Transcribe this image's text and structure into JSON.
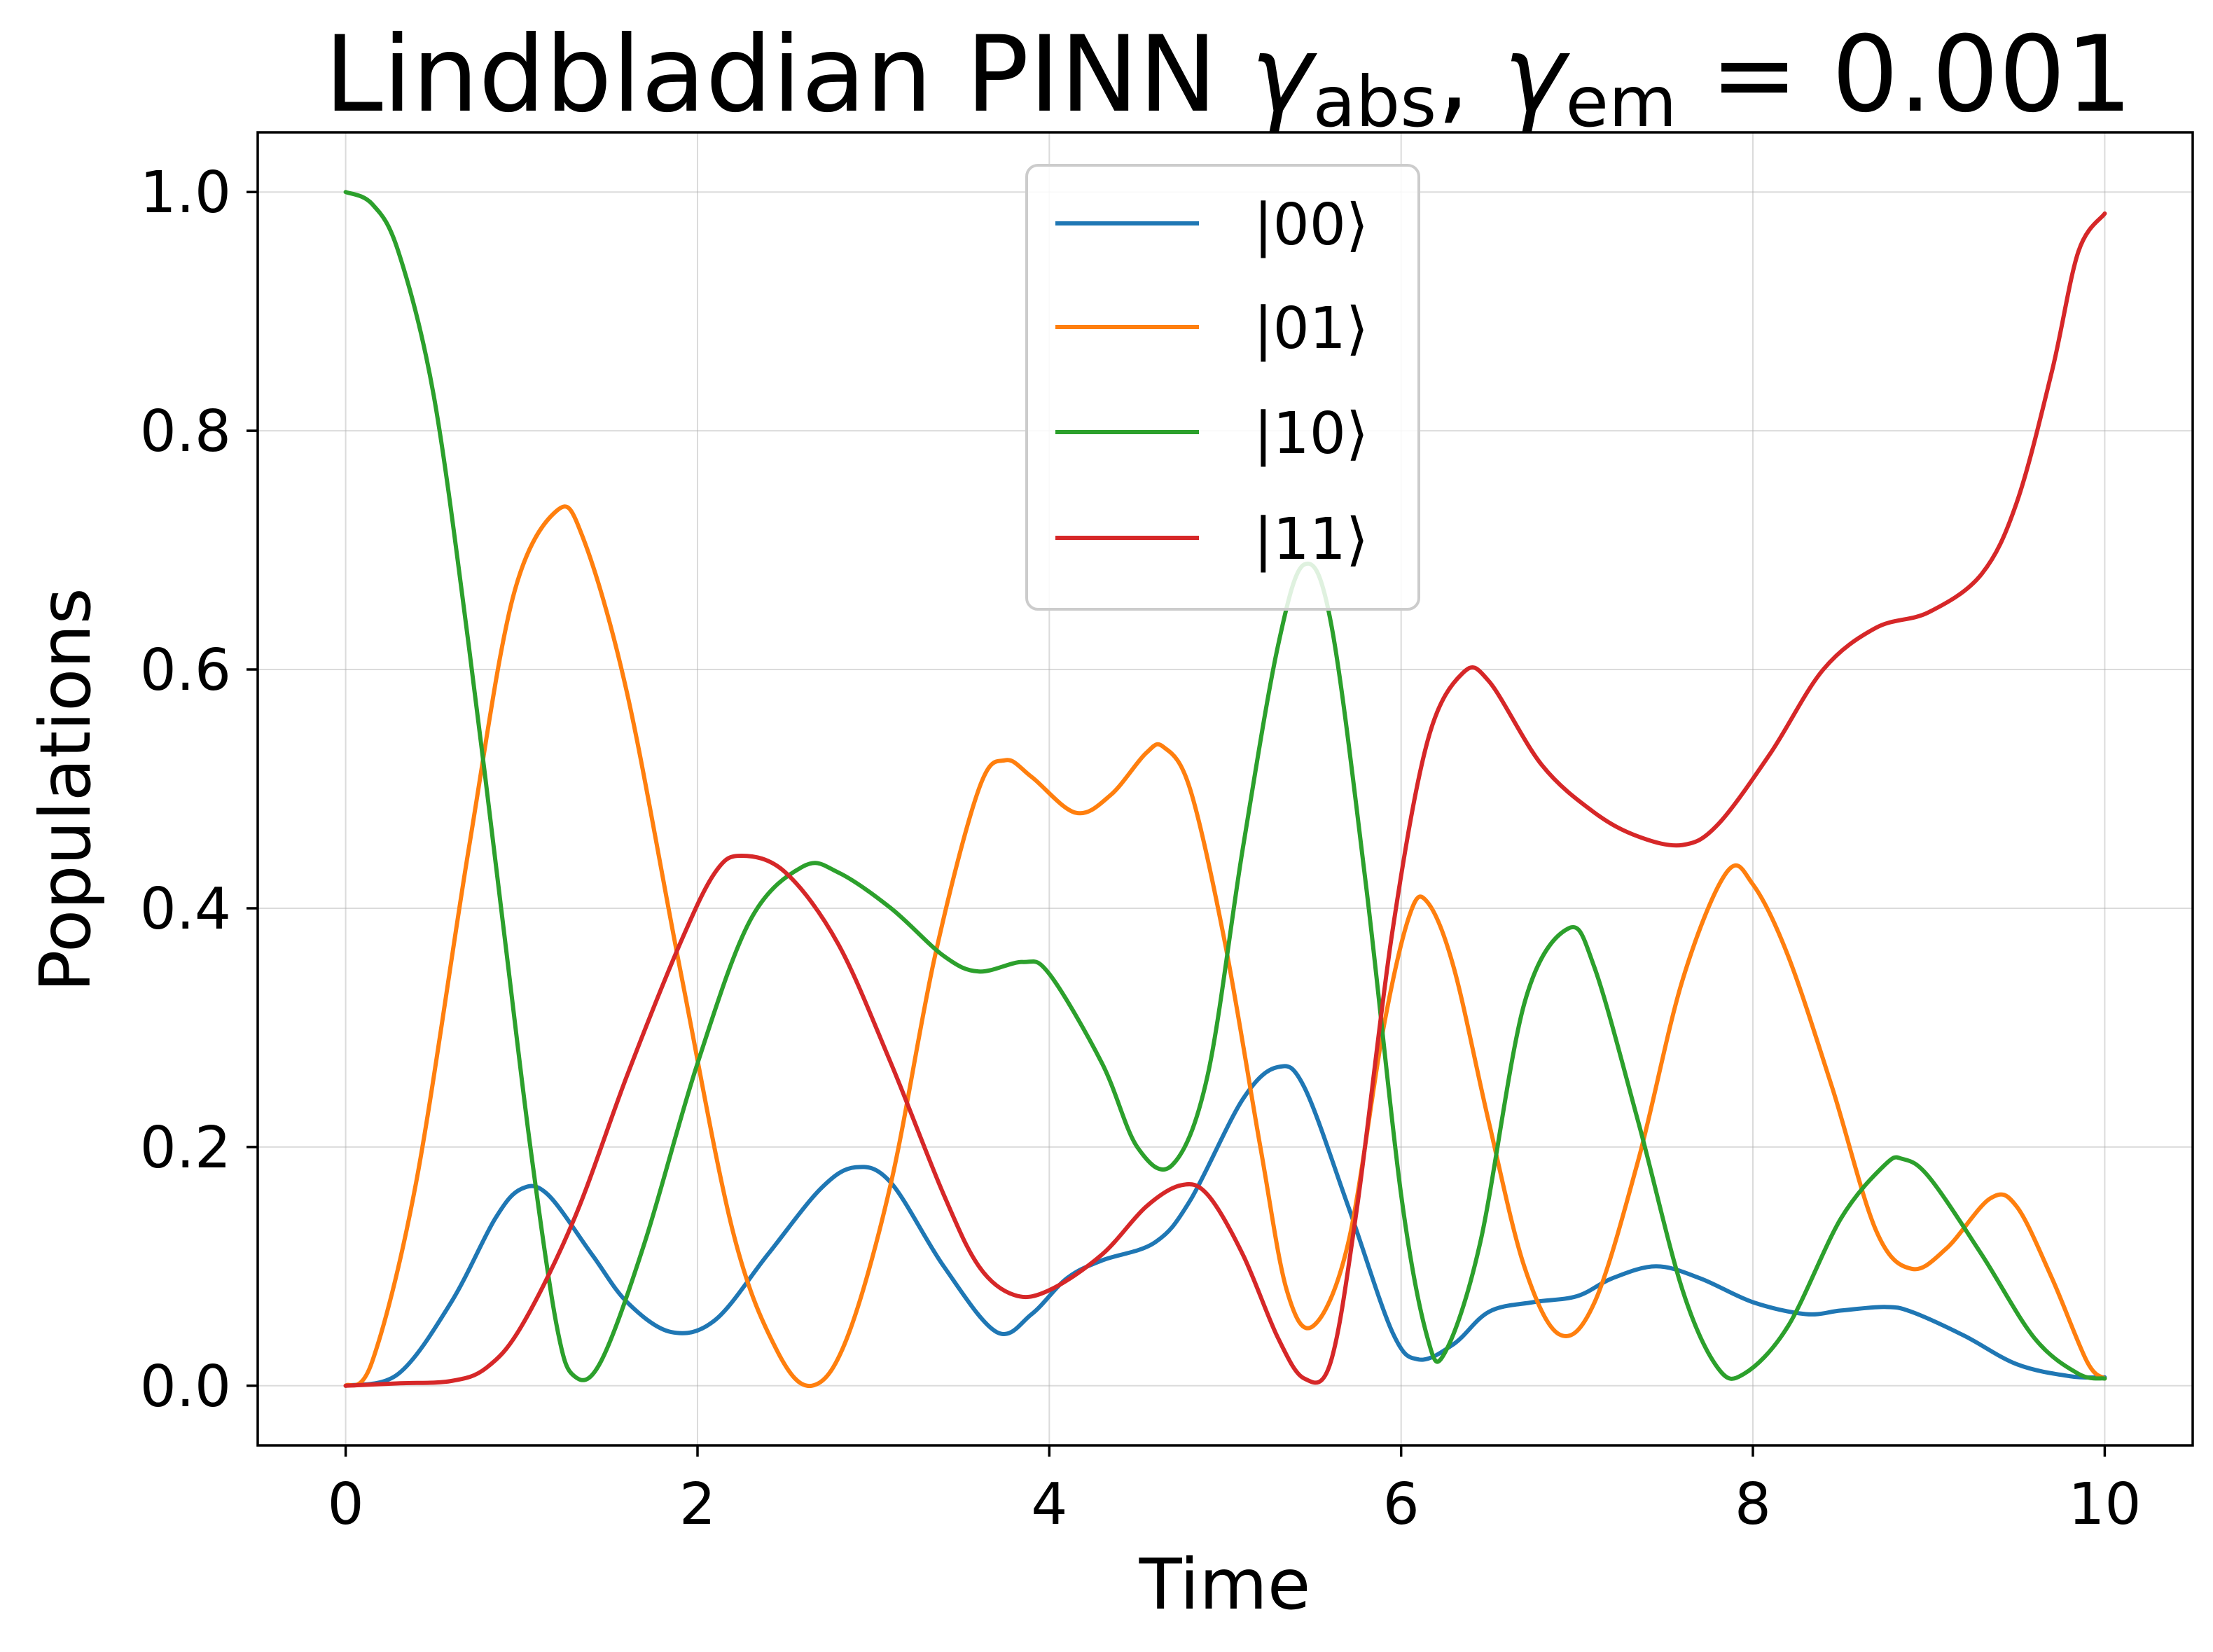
{
  "chart_data": {
    "type": "line",
    "title": "Lindbladian PINN γabs, γem = 0.001",
    "title_parts": {
      "prefix": "Lindbladian PINN ",
      "gamma": "γ",
      "sub_abs": "abs",
      "sep": ", ",
      "sub_em": "em",
      "suffix": " = 0.001"
    },
    "xlabel": "Time",
    "ylabel": "Populations",
    "xlim": [
      -0.5,
      10.5
    ],
    "ylim": [
      -0.05,
      1.05
    ],
    "xticks": [
      0,
      2,
      4,
      6,
      8,
      10
    ],
    "xtick_labels": [
      "0",
      "2",
      "4",
      "6",
      "8",
      "10"
    ],
    "yticks": [
      0.0,
      0.2,
      0.4,
      0.6,
      0.8,
      1.0
    ],
    "ytick_labels": [
      "0.0",
      "0.2",
      "0.4",
      "0.6",
      "0.8",
      "1.0"
    ],
    "grid": true,
    "legend_position": "top-center",
    "series": [
      {
        "name": "|00⟩",
        "color": "#1f77b4",
        "points": [
          [
            0,
            0
          ],
          [
            0.3,
            0.01
          ],
          [
            0.6,
            0.07
          ],
          [
            0.85,
            0.14
          ],
          [
            1.0,
            0.165
          ],
          [
            1.15,
            0.16
          ],
          [
            1.4,
            0.11
          ],
          [
            1.6,
            0.07
          ],
          [
            1.85,
            0.045
          ],
          [
            2.1,
            0.055
          ],
          [
            2.4,
            0.11
          ],
          [
            2.7,
            0.165
          ],
          [
            2.9,
            0.183
          ],
          [
            3.1,
            0.17
          ],
          [
            3.4,
            0.1
          ],
          [
            3.7,
            0.045
          ],
          [
            3.9,
            0.06
          ],
          [
            4.1,
            0.09
          ],
          [
            4.3,
            0.105
          ],
          [
            4.6,
            0.12
          ],
          [
            4.8,
            0.155
          ],
          [
            5.1,
            0.24
          ],
          [
            5.3,
            0.267
          ],
          [
            5.45,
            0.25
          ],
          [
            5.7,
            0.15
          ],
          [
            5.95,
            0.045
          ],
          [
            6.1,
            0.022
          ],
          [
            6.3,
            0.035
          ],
          [
            6.5,
            0.062
          ],
          [
            6.75,
            0.07
          ],
          [
            7.0,
            0.075
          ],
          [
            7.2,
            0.09
          ],
          [
            7.45,
            0.1
          ],
          [
            7.7,
            0.09
          ],
          [
            8.0,
            0.07
          ],
          [
            8.3,
            0.06
          ],
          [
            8.5,
            0.063
          ],
          [
            8.75,
            0.066
          ],
          [
            8.9,
            0.062
          ],
          [
            9.2,
            0.042
          ],
          [
            9.5,
            0.018
          ],
          [
            9.8,
            0.008
          ],
          [
            10,
            0.007
          ]
        ]
      },
      {
        "name": "|01⟩",
        "color": "#ff7f0e",
        "points": [
          [
            0,
            0
          ],
          [
            0.15,
            0.02
          ],
          [
            0.4,
            0.17
          ],
          [
            0.7,
            0.45
          ],
          [
            0.95,
            0.66
          ],
          [
            1.2,
            0.733
          ],
          [
            1.35,
            0.71
          ],
          [
            1.6,
            0.58
          ],
          [
            1.9,
            0.35
          ],
          [
            2.2,
            0.13
          ],
          [
            2.45,
            0.03
          ],
          [
            2.65,
            0.0
          ],
          [
            2.85,
            0.04
          ],
          [
            3.1,
            0.17
          ],
          [
            3.35,
            0.36
          ],
          [
            3.6,
            0.5
          ],
          [
            3.75,
            0.524
          ],
          [
            3.9,
            0.51
          ],
          [
            4.15,
            0.48
          ],
          [
            4.35,
            0.495
          ],
          [
            4.55,
            0.53
          ],
          [
            4.65,
            0.535
          ],
          [
            4.8,
            0.5
          ],
          [
            5.0,
            0.37
          ],
          [
            5.2,
            0.2
          ],
          [
            5.35,
            0.08
          ],
          [
            5.5,
            0.05
          ],
          [
            5.7,
            0.12
          ],
          [
            5.9,
            0.3
          ],
          [
            6.05,
            0.395
          ],
          [
            6.15,
            0.405
          ],
          [
            6.3,
            0.35
          ],
          [
            6.5,
            0.22
          ],
          [
            6.7,
            0.1
          ],
          [
            6.9,
            0.043
          ],
          [
            7.1,
            0.07
          ],
          [
            7.35,
            0.19
          ],
          [
            7.6,
            0.34
          ],
          [
            7.85,
            0.43
          ],
          [
            8.0,
            0.42
          ],
          [
            8.2,
            0.36
          ],
          [
            8.45,
            0.25
          ],
          [
            8.7,
            0.13
          ],
          [
            8.9,
            0.098
          ],
          [
            9.1,
            0.115
          ],
          [
            9.35,
            0.157
          ],
          [
            9.5,
            0.15
          ],
          [
            9.7,
            0.09
          ],
          [
            9.9,
            0.02
          ],
          [
            10,
            0.006
          ]
        ]
      },
      {
        "name": "|10⟩",
        "color": "#2ca02c",
        "points": [
          [
            0,
            1.0
          ],
          [
            0.15,
            0.99
          ],
          [
            0.3,
            0.95
          ],
          [
            0.5,
            0.83
          ],
          [
            0.7,
            0.62
          ],
          [
            0.9,
            0.38
          ],
          [
            1.05,
            0.2
          ],
          [
            1.2,
            0.05
          ],
          [
            1.3,
            0.008
          ],
          [
            1.45,
            0.02
          ],
          [
            1.7,
            0.12
          ],
          [
            2.0,
            0.27
          ],
          [
            2.3,
            0.39
          ],
          [
            2.6,
            0.435
          ],
          [
            2.8,
            0.43
          ],
          [
            3.1,
            0.4
          ],
          [
            3.4,
            0.36
          ],
          [
            3.6,
            0.347
          ],
          [
            3.85,
            0.355
          ],
          [
            4.0,
            0.345
          ],
          [
            4.3,
            0.27
          ],
          [
            4.5,
            0.2
          ],
          [
            4.7,
            0.185
          ],
          [
            4.9,
            0.26
          ],
          [
            5.1,
            0.45
          ],
          [
            5.3,
            0.62
          ],
          [
            5.45,
            0.688
          ],
          [
            5.6,
            0.64
          ],
          [
            5.8,
            0.42
          ],
          [
            6.0,
            0.16
          ],
          [
            6.15,
            0.04
          ],
          [
            6.25,
            0.028
          ],
          [
            6.45,
            0.12
          ],
          [
            6.7,
            0.32
          ],
          [
            6.95,
            0.383
          ],
          [
            7.1,
            0.35
          ],
          [
            7.35,
            0.22
          ],
          [
            7.6,
            0.08
          ],
          [
            7.8,
            0.015
          ],
          [
            7.95,
            0.01
          ],
          [
            8.2,
            0.05
          ],
          [
            8.5,
            0.14
          ],
          [
            8.75,
            0.185
          ],
          [
            8.85,
            0.19
          ],
          [
            9.0,
            0.175
          ],
          [
            9.3,
            0.11
          ],
          [
            9.6,
            0.04
          ],
          [
            9.85,
            0.01
          ],
          [
            10,
            0.006
          ]
        ]
      },
      {
        "name": "|11⟩",
        "color": "#d62728",
        "points": [
          [
            0,
            0
          ],
          [
            0.3,
            0.002
          ],
          [
            0.6,
            0.004
          ],
          [
            0.8,
            0.015
          ],
          [
            1.0,
            0.05
          ],
          [
            1.3,
            0.14
          ],
          [
            1.6,
            0.26
          ],
          [
            1.9,
            0.37
          ],
          [
            2.1,
            0.43
          ],
          [
            2.25,
            0.444
          ],
          [
            2.5,
            0.43
          ],
          [
            2.8,
            0.37
          ],
          [
            3.1,
            0.27
          ],
          [
            3.4,
            0.16
          ],
          [
            3.6,
            0.1
          ],
          [
            3.8,
            0.076
          ],
          [
            4.0,
            0.08
          ],
          [
            4.3,
            0.11
          ],
          [
            4.55,
            0.15
          ],
          [
            4.75,
            0.168
          ],
          [
            4.9,
            0.16
          ],
          [
            5.1,
            0.11
          ],
          [
            5.3,
            0.04
          ],
          [
            5.45,
            0.006
          ],
          [
            5.6,
            0.02
          ],
          [
            5.75,
            0.15
          ],
          [
            5.95,
            0.38
          ],
          [
            6.15,
            0.54
          ],
          [
            6.35,
            0.597
          ],
          [
            6.5,
            0.59
          ],
          [
            6.8,
            0.52
          ],
          [
            7.1,
            0.48
          ],
          [
            7.35,
            0.46
          ],
          [
            7.6,
            0.453
          ],
          [
            7.8,
            0.47
          ],
          [
            8.1,
            0.53
          ],
          [
            8.4,
            0.6
          ],
          [
            8.7,
            0.635
          ],
          [
            9.0,
            0.648
          ],
          [
            9.3,
            0.68
          ],
          [
            9.5,
            0.74
          ],
          [
            9.7,
            0.85
          ],
          [
            9.85,
            0.95
          ],
          [
            10,
            0.982
          ]
        ]
      }
    ]
  }
}
